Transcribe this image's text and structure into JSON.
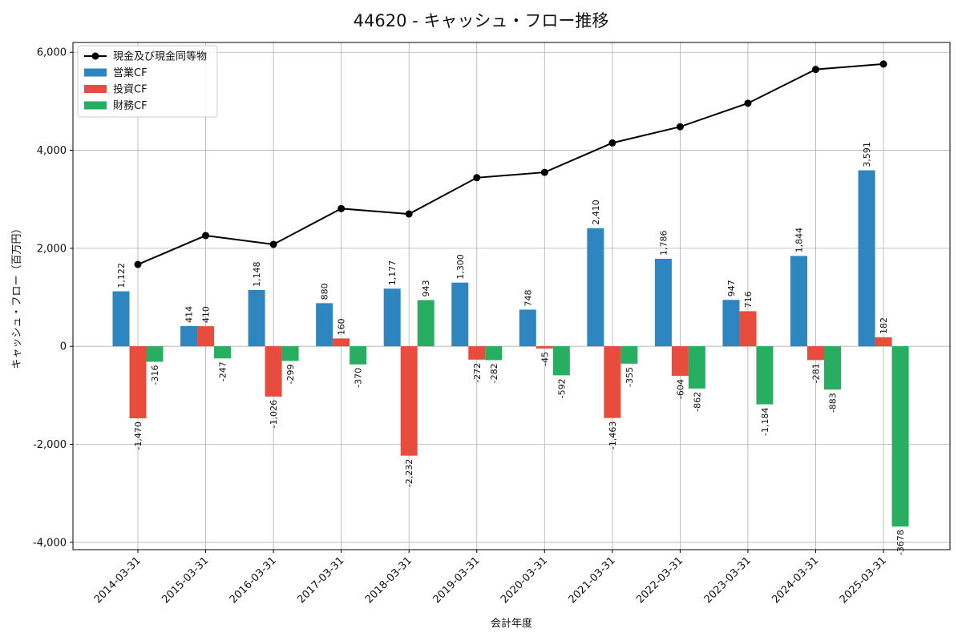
{
  "chart_data": {
    "type": "bar",
    "title": "44620 - キャッシュ・フロー推移",
    "xlabel": "会計年度",
    "ylabel": "キャッシュ・フロー（百万円）",
    "categories": [
      "2014-03-31",
      "2015-03-31",
      "2016-03-31",
      "2017-03-31",
      "2018-03-31",
      "2019-03-31",
      "2020-03-31",
      "2021-03-31",
      "2022-03-31",
      "2023-03-31",
      "2024-03-31",
      "2025-03-31"
    ],
    "ylim": [
      -4150,
      6200
    ],
    "yticks": [
      -4000,
      -2000,
      0,
      2000,
      4000,
      6000
    ],
    "ytick_labels": [
      "-4,000",
      "-2,000",
      "0",
      "2,000",
      "4,000",
      "6,000"
    ],
    "grid": true,
    "legend_position": "top-left",
    "series": [
      {
        "name": "営業CF",
        "kind": "bar",
        "color": "#2e86c1",
        "values": [
          1122,
          414,
          1148,
          880,
          1177,
          1300,
          748,
          2410,
          1786,
          947,
          1844,
          3591
        ],
        "labels": [
          "1,122",
          "414",
          "1,148",
          "880",
          "1,177",
          "1,300",
          "748",
          "2,410",
          "1,786",
          "947",
          "1,844",
          "3,591"
        ]
      },
      {
        "name": "投資CF",
        "kind": "bar",
        "color": "#e74c3c",
        "values": [
          -1470,
          410,
          -1026,
          160,
          -2232,
          -272,
          -45,
          -1463,
          -604,
          716,
          -281,
          182
        ],
        "labels": [
          "-1,470",
          "410",
          "-1,026",
          "160",
          "-2,232",
          "-272",
          "-45",
          "-1,463",
          "-604",
          "716",
          "-281",
          "182"
        ]
      },
      {
        "name": "財務CF",
        "kind": "bar",
        "color": "#27ae60",
        "values": [
          -316,
          -247,
          -299,
          -370,
          943,
          -282,
          -592,
          -355,
          -862,
          -1184,
          -883,
          -3678
        ],
        "labels": [
          "-316",
          "-247",
          "-299",
          "-370",
          "943",
          "-282",
          "-592",
          "-355",
          "-862",
          "-1,184",
          "-883",
          "-3678"
        ]
      },
      {
        "name": "現金及び現金同等物",
        "kind": "line",
        "color": "#000000",
        "values": [
          1670,
          2260,
          2080,
          2810,
          2700,
          3440,
          3550,
          4150,
          4480,
          4960,
          5650,
          5760
        ]
      }
    ]
  }
}
